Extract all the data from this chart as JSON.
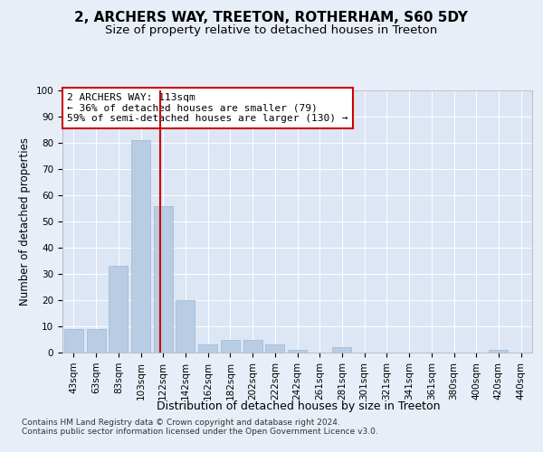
{
  "title_line1": "2, ARCHERS WAY, TREETON, ROTHERHAM, S60 5DY",
  "title_line2": "Size of property relative to detached houses in Treeton",
  "xlabel": "Distribution of detached houses by size in Treeton",
  "ylabel": "Number of detached properties",
  "bar_labels": [
    "43sqm",
    "63sqm",
    "83sqm",
    "103sqm",
    "122sqm",
    "142sqm",
    "162sqm",
    "182sqm",
    "202sqm",
    "222sqm",
    "242sqm",
    "261sqm",
    "281sqm",
    "301sqm",
    "321sqm",
    "341sqm",
    "361sqm",
    "380sqm",
    "400sqm",
    "420sqm",
    "440sqm"
  ],
  "bar_values": [
    9,
    9,
    33,
    81,
    56,
    20,
    3,
    5,
    5,
    3,
    1,
    0,
    2,
    0,
    0,
    0,
    0,
    0,
    0,
    1,
    0
  ],
  "bar_color": "#b8cce4",
  "bar_edgecolor": "#9db8d2",
  "background_color": "#e8eef7",
  "plot_bg_color": "#dce6f5",
  "grid_color": "#ffffff",
  "vline_x": 3.85,
  "vline_color": "#cc0000",
  "annotation_text": "2 ARCHERS WAY: 113sqm\n← 36% of detached houses are smaller (79)\n59% of semi-detached houses are larger (130) →",
  "annotation_box_color": "#ffffff",
  "annotation_box_edgecolor": "#cc0000",
  "ylim": [
    0,
    100
  ],
  "yticks": [
    0,
    10,
    20,
    30,
    40,
    50,
    60,
    70,
    80,
    90,
    100
  ],
  "footnote": "Contains HM Land Registry data © Crown copyright and database right 2024.\nContains public sector information licensed under the Open Government Licence v3.0.",
  "title_fontsize": 11,
  "subtitle_fontsize": 9.5,
  "axis_label_fontsize": 8.5,
  "tick_fontsize": 7.5,
  "annotation_fontsize": 8,
  "footnote_fontsize": 6.5
}
